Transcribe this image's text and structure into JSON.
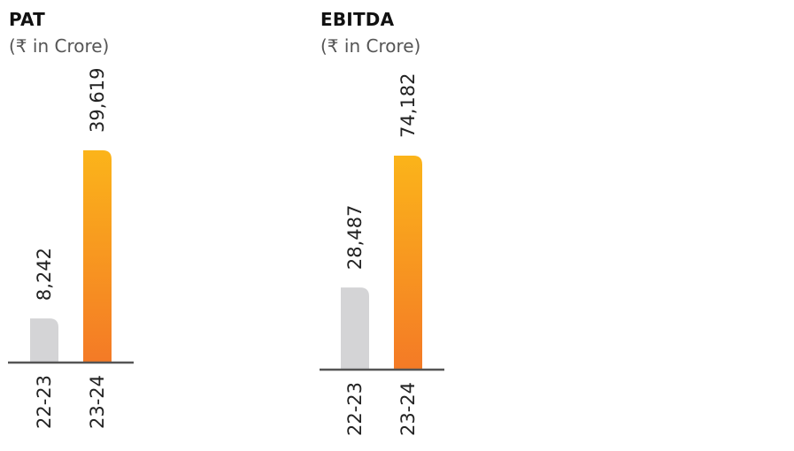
{
  "chart_data": [
    {
      "type": "bar",
      "title": "PAT",
      "subtitle": "(₹ in Crore)",
      "categories": [
        "22-23",
        "23-24"
      ],
      "values": [
        8242,
        39619
      ],
      "value_labels": [
        "8,242",
        "39,619"
      ],
      "colors": {
        "previous": "#d4d4d6",
        "current_top": "#fbb41a",
        "current_bottom": "#f47a26",
        "baseline": "#555555",
        "text": "#222222"
      }
    },
    {
      "type": "bar",
      "title": "EBITDA",
      "subtitle": "(₹ in Crore)",
      "categories": [
        "22-23",
        "23-24"
      ],
      "values": [
        28487,
        74182
      ],
      "value_labels": [
        "28,487",
        "74,182"
      ],
      "colors": {
        "previous": "#d4d4d6",
        "current_top": "#fbb41a",
        "current_bottom": "#f47a26",
        "baseline": "#555555",
        "text": "#222222"
      }
    }
  ]
}
